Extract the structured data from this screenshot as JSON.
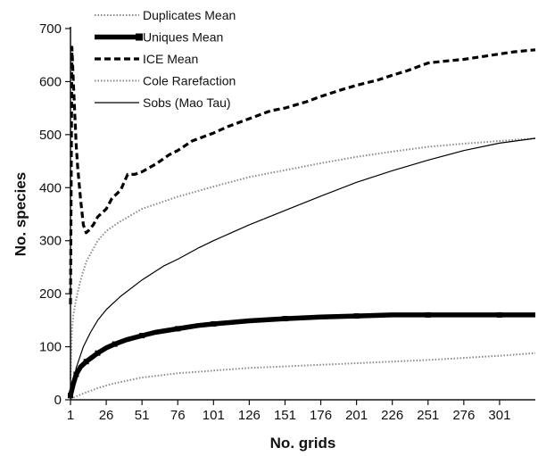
{
  "chart_data": {
    "type": "line",
    "title": "",
    "xlabel": "No. grids",
    "ylabel": "No. species",
    "xlim": [
      1,
      326
    ],
    "ylim": [
      0,
      700
    ],
    "x_ticks": [
      1,
      26,
      51,
      76,
      101,
      126,
      151,
      176,
      201,
      226,
      251,
      276,
      301
    ],
    "x_tick_labels": [
      "1",
      "26",
      "51",
      "76",
      "101",
      "126",
      "151",
      "176",
      "201",
      "226",
      "251",
      "276",
      "301"
    ],
    "y_ticks": [
      0,
      100,
      200,
      300,
      400,
      500,
      600,
      700
    ],
    "y_tick_labels": [
      "0",
      "100",
      "200",
      "300",
      "400",
      "500",
      "600",
      "700"
    ],
    "grid": false,
    "legend_position": "top-left",
    "series": [
      {
        "name": "Duplicates Mean",
        "style": "dotted-grey",
        "x": [
          1,
          5,
          10,
          20,
          30,
          51,
          76,
          101,
          126,
          151,
          176,
          201,
          226,
          251,
          276,
          301,
          326
        ],
        "y": [
          2,
          6,
          12,
          22,
          30,
          42,
          50,
          55,
          60,
          63,
          66,
          69,
          72,
          75,
          79,
          83,
          88
        ]
      },
      {
        "name": "Uniques Mean",
        "style": "thick-black-square",
        "x": [
          1,
          3,
          5,
          8,
          12,
          16,
          20,
          26,
          32,
          40,
          51,
          60,
          76,
          90,
          101,
          126,
          151,
          176,
          201,
          226,
          251,
          276,
          301,
          326
        ],
        "y": [
          8,
          30,
          48,
          62,
          72,
          80,
          88,
          98,
          105,
          113,
          121,
          127,
          134,
          140,
          143,
          149,
          153,
          156,
          158,
          160,
          160,
          160,
          160,
          160
        ]
      },
      {
        "name": "ICE Mean",
        "style": "dashed-black",
        "x": [
          1,
          2,
          3,
          4,
          5,
          6,
          8,
          10,
          12,
          14,
          17,
          20,
          26,
          30,
          36,
          41,
          46,
          51,
          61,
          70,
          76,
          86,
          101,
          111,
          126,
          141,
          151,
          166,
          176,
          191,
          201,
          216,
          226,
          236,
          251,
          261,
          276,
          291,
          301,
          311,
          326
        ],
        "y": [
          180,
          665,
          600,
          540,
          480,
          440,
          380,
          330,
          315,
          320,
          330,
          345,
          360,
          380,
          395,
          425,
          425,
          430,
          445,
          462,
          470,
          488,
          503,
          515,
          530,
          545,
          550,
          562,
          572,
          585,
          593,
          603,
          612,
          620,
          635,
          638,
          642,
          648,
          652,
          656,
          660
        ]
      },
      {
        "name": "Cole Rarefaction",
        "style": "dotted-grey",
        "x": [
          1,
          2,
          3,
          5,
          8,
          12,
          16,
          20,
          26,
          35,
          51,
          76,
          101,
          126,
          151,
          176,
          201,
          226,
          251,
          276,
          301,
          326
        ],
        "y": [
          40,
          130,
          160,
          190,
          225,
          260,
          280,
          300,
          318,
          335,
          360,
          383,
          402,
          420,
          433,
          446,
          458,
          468,
          477,
          483,
          488,
          493
        ]
      },
      {
        "name": "Sobs (Mao Tau)",
        "style": "thin-black",
        "x": [
          1,
          5,
          10,
          15,
          20,
          26,
          36,
          51,
          66,
          76,
          91,
          101,
          126,
          151,
          176,
          201,
          226,
          251,
          276,
          301,
          326
        ],
        "y": [
          3,
          60,
          100,
          127,
          150,
          170,
          195,
          226,
          252,
          265,
          287,
          300,
          330,
          357,
          384,
          410,
          432,
          452,
          470,
          484,
          493
        ]
      }
    ]
  }
}
